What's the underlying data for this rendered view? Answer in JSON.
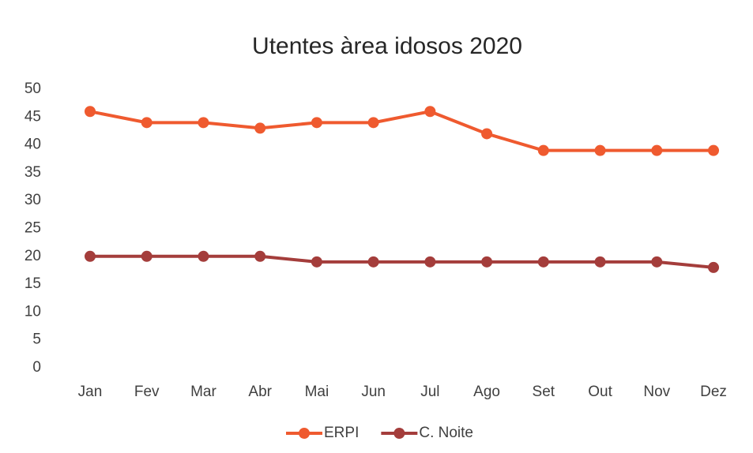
{
  "chart_data": {
    "type": "line",
    "title": "Utentes àrea idosos 2020",
    "categories": [
      "Jan",
      "Fev",
      "Mar",
      "Abr",
      "Mai",
      "Jun",
      "Jul",
      "Ago",
      "Set",
      "Out",
      "Nov",
      "Dez"
    ],
    "series": [
      {
        "name": "ERPI",
        "color": "#ef5a2f",
        "values": [
          46,
          44,
          44,
          43,
          44,
          44,
          46,
          42,
          39,
          39,
          39,
          39
        ]
      },
      {
        "name": "C. Noite",
        "color": "#a43d3b",
        "values": [
          20,
          20,
          20,
          20,
          19,
          19,
          19,
          19,
          19,
          19,
          19,
          18
        ]
      }
    ],
    "ylim": [
      0,
      50
    ],
    "yticks": [
      0,
      5,
      10,
      15,
      20,
      25,
      30,
      35,
      40,
      45,
      50
    ],
    "grid": false,
    "legend": "bottom"
  }
}
